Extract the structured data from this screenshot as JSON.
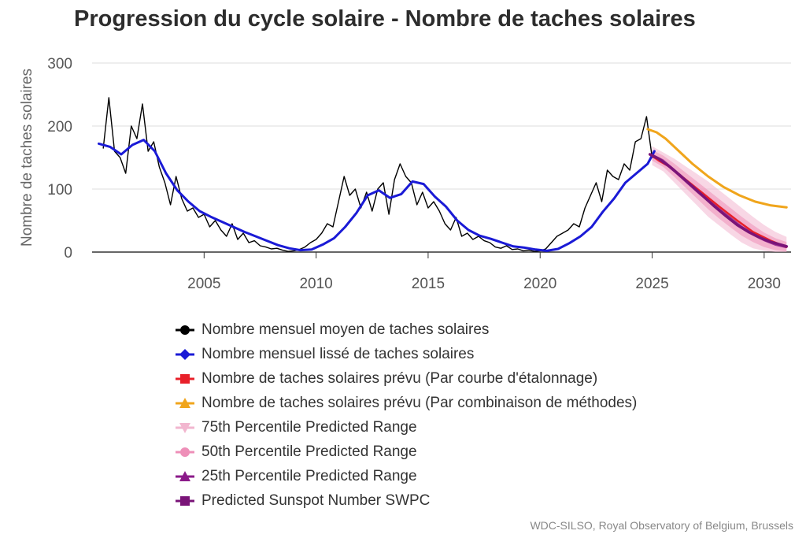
{
  "chart_data": {
    "type": "line",
    "title": "Progression du cycle solaire - Nombre de taches solaires",
    "ylabel": "Nombre de taches solaires",
    "xlabel": "",
    "source": "WDC-SILSO, Royal Observatory of Belgium, Brussels",
    "xlim": [
      2000.0,
      2031.2
    ],
    "ylim": [
      0,
      300
    ],
    "x_ticks": [
      2005,
      2010,
      2015,
      2020,
      2025,
      2030
    ],
    "y_ticks": [
      0,
      100,
      200,
      300
    ],
    "grid": "horizontal",
    "legend_position": "bottom",
    "series": [
      {
        "name": "Nombre mensuel moyen de taches solaires",
        "color": "#000000",
        "marker": "circle",
        "x": [
          2000.5,
          2000.75,
          2001.0,
          2001.25,
          2001.5,
          2001.75,
          2002.0,
          2002.25,
          2002.5,
          2002.75,
          2003.0,
          2003.25,
          2003.5,
          2003.75,
          2004.0,
          2004.25,
          2004.5,
          2004.75,
          2005.0,
          2005.25,
          2005.5,
          2005.75,
          2006.0,
          2006.25,
          2006.5,
          2006.75,
          2007.0,
          2007.25,
          2007.5,
          2007.75,
          2008.0,
          2008.25,
          2008.5,
          2008.75,
          2009.0,
          2009.25,
          2009.5,
          2009.75,
          2010.0,
          2010.25,
          2010.5,
          2010.75,
          2011.0,
          2011.25,
          2011.5,
          2011.75,
          2012.0,
          2012.25,
          2012.5,
          2012.75,
          2013.0,
          2013.25,
          2013.5,
          2013.75,
          2014.0,
          2014.25,
          2014.5,
          2014.75,
          2015.0,
          2015.25,
          2015.5,
          2015.75,
          2016.0,
          2016.25,
          2016.5,
          2016.75,
          2017.0,
          2017.25,
          2017.5,
          2017.75,
          2018.0,
          2018.25,
          2018.5,
          2018.75,
          2019.0,
          2019.25,
          2019.5,
          2019.75,
          2020.0,
          2020.25,
          2020.5,
          2020.75,
          2021.0,
          2021.25,
          2021.5,
          2021.75,
          2022.0,
          2022.25,
          2022.5,
          2022.75,
          2023.0,
          2023.25,
          2023.5,
          2023.75,
          2024.0,
          2024.25,
          2024.5,
          2024.75,
          2025.0
        ],
        "values": [
          165,
          245,
          160,
          150,
          125,
          200,
          180,
          235,
          160,
          175,
          135,
          110,
          75,
          120,
          85,
          65,
          70,
          55,
          60,
          40,
          50,
          35,
          25,
          45,
          20,
          30,
          15,
          18,
          10,
          8,
          5,
          6,
          3,
          1,
          2,
          4,
          8,
          15,
          20,
          30,
          45,
          40,
          80,
          120,
          90,
          100,
          70,
          95,
          65,
          100,
          110,
          60,
          115,
          140,
          120,
          110,
          75,
          95,
          70,
          80,
          65,
          45,
          35,
          55,
          25,
          30,
          20,
          25,
          18,
          15,
          8,
          6,
          10,
          4,
          5,
          2,
          3,
          1,
          2,
          5,
          15,
          25,
          30,
          35,
          45,
          40,
          70,
          90,
          110,
          80,
          130,
          120,
          115,
          140,
          130,
          175,
          180,
          215,
          150
        ]
      },
      {
        "name": "Nombre mensuel lissé de taches solaires",
        "color": "#1a1ad6",
        "marker": "diamond",
        "x": [
          2000.3,
          2000.8,
          2001.3,
          2001.8,
          2002.3,
          2002.8,
          2003.3,
          2003.8,
          2004.3,
          2004.8,
          2005.3,
          2005.8,
          2006.3,
          2006.8,
          2007.3,
          2007.8,
          2008.3,
          2008.8,
          2009.3,
          2009.8,
          2010.3,
          2010.8,
          2011.3,
          2011.8,
          2012.3,
          2012.8,
          2013.3,
          2013.8,
          2014.3,
          2014.8,
          2015.3,
          2015.8,
          2016.3,
          2016.8,
          2017.3,
          2017.8,
          2018.3,
          2018.8,
          2019.3,
          2019.8,
          2020.3,
          2020.8,
          2021.3,
          2021.8,
          2022.3,
          2022.8,
          2023.3,
          2023.8,
          2024.3,
          2024.8,
          2025.1
        ],
        "values": [
          172,
          167,
          155,
          170,
          178,
          160,
          125,
          98,
          80,
          65,
          56,
          48,
          40,
          32,
          25,
          18,
          11,
          6,
          3,
          4,
          12,
          22,
          40,
          62,
          90,
          98,
          86,
          92,
          112,
          108,
          88,
          72,
          50,
          35,
          26,
          21,
          15,
          9,
          7,
          4,
          2,
          5,
          14,
          25,
          40,
          64,
          85,
          110,
          125,
          140,
          160
        ]
      },
      {
        "name": "Nombre de taches solaires prévu (Par courbe d'étalonnage)",
        "color": "#e8202a",
        "marker": "square",
        "x": [
          2024.9,
          2025.3,
          2025.8,
          2026.5,
          2027.2,
          2028.0,
          2028.8,
          2029.5,
          2030.3,
          2031.0
        ],
        "values": [
          155,
          145,
          135,
          115,
          95,
          72,
          50,
          32,
          18,
          8
        ]
      },
      {
        "name": "Nombre de taches solaires prévu (Par combinaison de méthodes)",
        "color": "#f0a51c",
        "marker": "triangle",
        "x": [
          2024.8,
          2025.2,
          2025.6,
          2026.2,
          2026.8,
          2027.5,
          2028.2,
          2028.9,
          2029.6,
          2030.3,
          2031.0
        ],
        "values": [
          195,
          190,
          180,
          160,
          140,
          120,
          103,
          90,
          80,
          74,
          71
        ]
      },
      {
        "name": "75th Percentile Predicted Range",
        "color": "#f2b6cf",
        "marker": "triangle-down",
        "x": [
          2025.0,
          2025.5,
          2026.0,
          2026.5,
          2027.0,
          2027.5,
          2028.0,
          2028.5,
          2029.0,
          2029.5,
          2030.0,
          2030.5,
          2031.0
        ],
        "upper": [
          168,
          158,
          148,
          136,
          124,
          112,
          98,
          84,
          70,
          56,
          43,
          32,
          24
        ],
        "lower": [
          138,
          128,
          110,
          92,
          74,
          56,
          42,
          28,
          15,
          6,
          2,
          0,
          0
        ]
      },
      {
        "name": "50th Percentile Predicted Range",
        "color": "#ee8fb8",
        "marker": "circle",
        "x": [
          2025.0,
          2025.5,
          2026.0,
          2026.5,
          2027.0,
          2027.5,
          2028.0,
          2028.5,
          2029.0,
          2029.5,
          2030.0,
          2030.5,
          2031.0
        ],
        "upper": [
          162,
          153,
          140,
          126,
          112,
          98,
          84,
          70,
          56,
          43,
          31,
          22,
          16
        ],
        "lower": [
          145,
          135,
          119,
          102,
          85,
          68,
          53,
          39,
          26,
          16,
          8,
          3,
          1
        ]
      },
      {
        "name": "25th Percentile Predicted Range",
        "color": "#8b1a89",
        "marker": "triangle",
        "x": [
          2025.0,
          2025.5,
          2026.0,
          2026.5,
          2027.0,
          2027.5,
          2028.0,
          2028.5,
          2029.0,
          2029.5,
          2030.0,
          2030.5,
          2031.0
        ],
        "upper": [
          156,
          147,
          132,
          116,
          100,
          85,
          70,
          56,
          42,
          31,
          21,
          14,
          10
        ],
        "lower": [
          150,
          141,
          126,
          110,
          94,
          79,
          64,
          50,
          37,
          26,
          17,
          10,
          6
        ]
      },
      {
        "name": "Predicted Sunspot Number SWPC",
        "color": "#7a1478",
        "marker": "square",
        "x": [
          2024.9,
          2025.3,
          2025.8,
          2026.3,
          2026.8,
          2027.3,
          2027.8,
          2028.3,
          2028.8,
          2029.3,
          2029.8,
          2030.3,
          2030.8,
          2031.0
        ],
        "values": [
          155,
          148,
          135,
          120,
          104,
          88,
          72,
          57,
          43,
          32,
          23,
          16,
          11,
          9
        ]
      }
    ]
  }
}
